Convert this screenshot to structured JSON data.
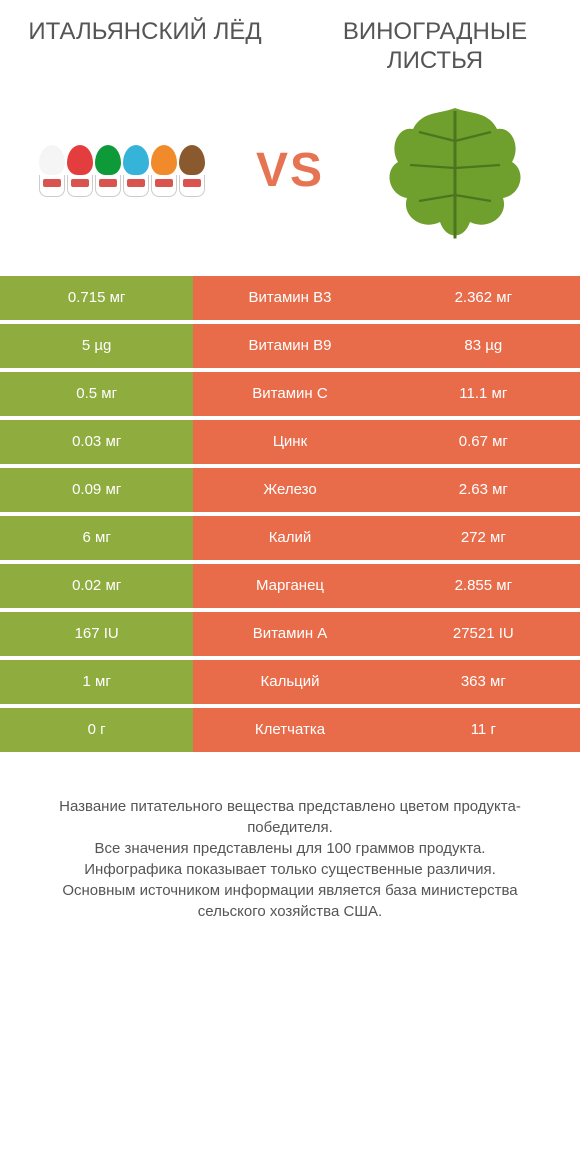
{
  "colors": {
    "left": "#8fac3f",
    "right": "#e86c4a",
    "mid_even": "#e86c4a",
    "mid_odd": "#e86c4a",
    "row_gap": "#ffffff",
    "title_text": "#555555",
    "vs_text": "#e67452",
    "body_text": "#555555"
  },
  "titles": {
    "left": "ИТАЛЬЯНСКИЙ ЛЁД",
    "right": "ВИНОГРАДНЫЕ ЛИСТЬЯ"
  },
  "vs": "VS",
  "cone_colors": [
    "#f5f5f5",
    "#e43d3d",
    "#0f9a3a",
    "#36b3d8",
    "#f08a2a",
    "#8a5a2e"
  ],
  "leaf_color": "#6fa02e",
  "rows": [
    {
      "left": "0.715 мг",
      "label": "Витамин B3",
      "right": "2.362 мг"
    },
    {
      "left": "5 µg",
      "label": "Витамин B9",
      "right": "83 µg"
    },
    {
      "left": "0.5 мг",
      "label": "Витамин C",
      "right": "11.1 мг"
    },
    {
      "left": "0.03 мг",
      "label": "Цинк",
      "right": "0.67 мг"
    },
    {
      "left": "0.09 мг",
      "label": "Железо",
      "right": "2.63 мг"
    },
    {
      "left": "6 мг",
      "label": "Калий",
      "right": "272 мг"
    },
    {
      "left": "0.02 мг",
      "label": "Марганец",
      "right": "2.855 мг"
    },
    {
      "left": "167 IU",
      "label": "Витамин A",
      "right": "27521 IU"
    },
    {
      "left": "1 мг",
      "label": "Кальций",
      "right": "363 мг"
    },
    {
      "left": "0 г",
      "label": "Клетчатка",
      "right": "11 г"
    }
  ],
  "footer": [
    "Название питательного вещества представлено цветом продукта-победителя.",
    "Все значения представлены для 100 граммов продукта.",
    "Инфографика показывает только существенные различия.",
    "Основным источником информации является база министерства сельского хозяйства США."
  ]
}
